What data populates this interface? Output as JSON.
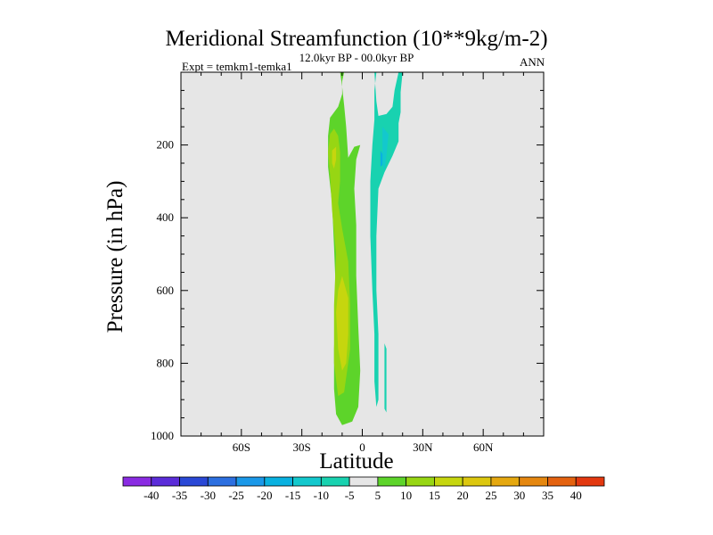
{
  "chart_data": {
    "type": "contour",
    "title": "Meridional Streamfunction (10**9kg/m-2)",
    "subtitle": "12.0kyr BP - 00.0kyr BP",
    "left_label": "Expt = temkm1-temka1",
    "right_label": "ANN",
    "xlabel": "Latitude",
    "ylabel": "Pressure (in hPa)",
    "xlim": [
      -90,
      90
    ],
    "ylim": [
      1000,
      0
    ],
    "x_tick_labels": [
      {
        "value": -60,
        "label": "60S"
      },
      {
        "value": -30,
        "label": "30S"
      },
      {
        "value": 0,
        "label": "0"
      },
      {
        "value": 30,
        "label": "30N"
      },
      {
        "value": 60,
        "label": "60N"
      }
    ],
    "y_tick_labels": [
      {
        "value": 200,
        "label": "200"
      },
      {
        "value": 400,
        "label": "400"
      },
      {
        "value": 600,
        "label": "600"
      },
      {
        "value": 800,
        "label": "800"
      },
      {
        "value": 1000,
        "label": "1000"
      }
    ],
    "background_color": "#e6e6e6",
    "colorbar": {
      "levels": [
        "-40",
        "-35",
        "-30",
        "-25",
        "-20",
        "-15",
        "-10",
        "-5",
        "5",
        "10",
        "15",
        "20",
        "25",
        "30",
        "35",
        "40"
      ],
      "colors": [
        "#8a2be2",
        "#5b2cd9",
        "#2a48d6",
        "#2c6fe0",
        "#1a98e8",
        "#09b1e0",
        "#13c8cd",
        "#18d2b0",
        "#e6e6e6",
        "#5dd42a",
        "#97d613",
        "#c6d60e",
        "#dcc70e",
        "#e5a80f",
        "#e5870f",
        "#e4620f",
        "#e3380f"
      ]
    },
    "contours": [
      {
        "level": "5 to 10",
        "color": "#5dd42a",
        "points": [
          [
            -11,
            0
          ],
          [
            -9,
            0
          ],
          [
            -10,
            25
          ],
          [
            -10,
            60
          ],
          [
            -12,
            95
          ],
          [
            -16,
            125
          ],
          [
            -17,
            175
          ],
          [
            -17,
            260
          ],
          [
            -15,
            360
          ],
          [
            -14,
            480
          ],
          [
            -13,
            620
          ],
          [
            -14,
            760
          ],
          [
            -14,
            870
          ],
          [
            -13,
            940
          ],
          [
            -10,
            970
          ],
          [
            -5,
            960
          ],
          [
            -2,
            920
          ],
          [
            -1,
            820
          ],
          [
            -2,
            700
          ],
          [
            -3,
            560
          ],
          [
            -3,
            420
          ],
          [
            -4,
            320
          ],
          [
            -3,
            240
          ],
          [
            -1,
            200
          ],
          [
            -4,
            205
          ],
          [
            -7,
            235
          ],
          [
            -8,
            150
          ],
          [
            -9,
            90
          ],
          [
            -10,
            40
          ]
        ]
      },
      {
        "level": "10 to 15",
        "color": "#97d613",
        "points": [
          [
            -16,
            170
          ],
          [
            -14,
            155
          ],
          [
            -12,
            175
          ],
          [
            -11,
            220
          ],
          [
            -11,
            300
          ],
          [
            -12,
            360
          ],
          [
            -10,
            430
          ],
          [
            -7,
            520
          ],
          [
            -6,
            640
          ],
          [
            -6,
            760
          ],
          [
            -9,
            880
          ],
          [
            -12,
            890
          ],
          [
            -14,
            800
          ],
          [
            -14,
            640
          ],
          [
            -13,
            500
          ],
          [
            -15,
            380
          ],
          [
            -16,
            280
          ],
          [
            -17,
            220
          ]
        ]
      },
      {
        "level": "15 to 20",
        "color": "#c6d60e",
        "points": [
          [
            -10,
            560
          ],
          [
            -7,
            620
          ],
          [
            -7,
            720
          ],
          [
            -8,
            800
          ],
          [
            -10,
            820
          ],
          [
            -12,
            760
          ],
          [
            -13,
            660
          ],
          [
            -12,
            600
          ]
        ]
      },
      {
        "level": "15 to 20",
        "color": "#c6d60e",
        "points": [
          [
            -15,
            215
          ],
          [
            -13,
            205
          ],
          [
            -13,
            240
          ],
          [
            -14,
            265
          ],
          [
            -15,
            250
          ]
        ]
      },
      {
        "level": "-5 to -10",
        "color": "#18d2b0",
        "points": [
          [
            6,
            0
          ],
          [
            7,
            0
          ],
          [
            6,
            50
          ],
          [
            6,
            130
          ],
          [
            5,
            200
          ],
          [
            4,
            300
          ],
          [
            4,
            450
          ],
          [
            5,
            600
          ],
          [
            6,
            720
          ],
          [
            6,
            850
          ],
          [
            7,
            920
          ],
          [
            8,
            900
          ],
          [
            8,
            820
          ],
          [
            8,
            720
          ],
          [
            7,
            600
          ],
          [
            7,
            450
          ],
          [
            8,
            320
          ],
          [
            11,
            275
          ],
          [
            15,
            230
          ],
          [
            18,
            190
          ],
          [
            18,
            140
          ],
          [
            19,
            110
          ],
          [
            19,
            55
          ],
          [
            20,
            0
          ],
          [
            18,
            0
          ],
          [
            16,
            50
          ],
          [
            15,
            95
          ],
          [
            12,
            115
          ],
          [
            8,
            120
          ],
          [
            7,
            80
          ]
        ]
      },
      {
        "level": "-5 to -10",
        "color": "#18d2b0",
        "points": [
          [
            11,
            745
          ],
          [
            12,
            760
          ],
          [
            12,
            860
          ],
          [
            12,
            935
          ],
          [
            11,
            925
          ],
          [
            11,
            850
          ]
        ]
      },
      {
        "level": "-10 to -15",
        "color": "#13c8cd",
        "points": [
          [
            10,
            150
          ],
          [
            13,
            170
          ],
          [
            12,
            230
          ],
          [
            11,
            270
          ],
          [
            10,
            250
          ]
        ]
      },
      {
        "level": "-15 to -20",
        "color": "#09b1e0",
        "points": [
          [
            9,
            215
          ],
          [
            10,
            225
          ],
          [
            10,
            255
          ],
          [
            9,
            260
          ]
        ]
      }
    ]
  }
}
